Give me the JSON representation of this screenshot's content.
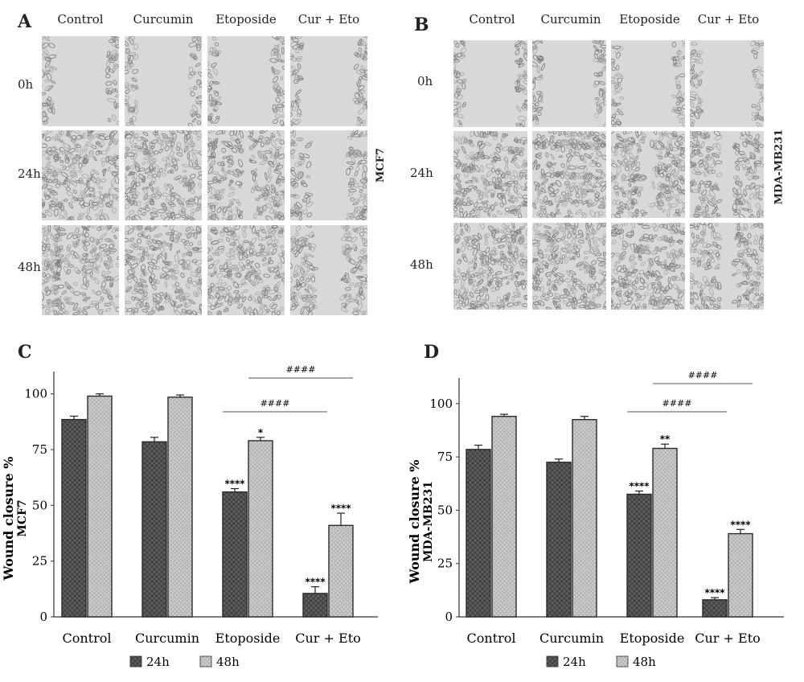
{
  "panels": {
    "A": {
      "letter": "A",
      "columns": [
        "Control",
        "Curcumin",
        "Etoposide",
        "Cur + Eto"
      ],
      "rows": [
        "0h",
        "24h",
        "48h"
      ],
      "cell_line": "MCF7"
    },
    "B": {
      "letter": "B",
      "columns": [
        "Control",
        "Curcumin",
        "Etoposide",
        "Cur + Eto"
      ],
      "rows": [
        "0h",
        "24h",
        "48h"
      ],
      "cell_line": "MDA-MB231"
    },
    "C_letter": "C",
    "D_letter": "D"
  },
  "colors": {
    "bar24": "#5f5f5f",
    "bar48": "#c9c9c9",
    "axis": "#333333",
    "photo_bg": "#dcdcdc",
    "photo_cells": "#8a8a8a"
  },
  "chart_data": [
    {
      "type": "bar",
      "panel": "C",
      "categories": [
        "Control",
        "Curcumin",
        "Etoposide",
        "Cur + Eto"
      ],
      "series": [
        {
          "name": "24h",
          "values": [
            88.5,
            78.5,
            56,
            10.5
          ],
          "errors": [
            1.5,
            2,
            1.5,
            3
          ]
        },
        {
          "name": "48h",
          "values": [
            99,
            98.5,
            79,
            41
          ],
          "errors": [
            1,
            1,
            1.5,
            5.5
          ]
        }
      ],
      "ylabel": "Wound closure % MCF7",
      "ylabel_lines": [
        "Wound closure %",
        "MCF7"
      ],
      "yticks": [
        0,
        25,
        50,
        75,
        100
      ],
      "ylim": [
        0,
        110
      ],
      "significance": [
        {
          "text": "****",
          "category": 2,
          "series": 0
        },
        {
          "text": "*",
          "category": 2,
          "series": 1
        },
        {
          "text": "****",
          "category": 3,
          "series": 0
        },
        {
          "text": "****",
          "category": 3,
          "series": 1
        }
      ],
      "brackets": [
        {
          "text": "####",
          "from": 2,
          "to": 3,
          "series": 0
        },
        {
          "text": "####",
          "from": 2,
          "to": 3,
          "series": 1
        }
      ],
      "grid": false,
      "legend": "bottom"
    },
    {
      "type": "bar",
      "panel": "D",
      "categories": [
        "Control",
        "Curcumin",
        "Etoposide",
        "Cur + Eto"
      ],
      "series": [
        {
          "name": "24h",
          "values": [
            78.5,
            72.5,
            57.5,
            8
          ],
          "errors": [
            2,
            1.5,
            1.5,
            1
          ]
        },
        {
          "name": "48h",
          "values": [
            94,
            92.5,
            79,
            39
          ],
          "errors": [
            1,
            1.5,
            2,
            2
          ]
        }
      ],
      "ylabel": "Wound closure % MDA-MB231",
      "ylabel_lines": [
        "Wound closure %",
        "MDA-MB231"
      ],
      "yticks": [
        0,
        25,
        50,
        75,
        100
      ],
      "ylim": [
        0,
        112
      ],
      "significance": [
        {
          "text": "****",
          "category": 2,
          "series": 0
        },
        {
          "text": "**",
          "category": 2,
          "series": 1
        },
        {
          "text": "****",
          "category": 3,
          "series": 0
        },
        {
          "text": "****",
          "category": 3,
          "series": 1
        }
      ],
      "brackets": [
        {
          "text": "####",
          "from": 2,
          "to": 3,
          "series": 0
        },
        {
          "text": "####",
          "from": 2,
          "to": 3,
          "series": 1
        }
      ],
      "grid": false,
      "legend": "bottom"
    }
  ]
}
